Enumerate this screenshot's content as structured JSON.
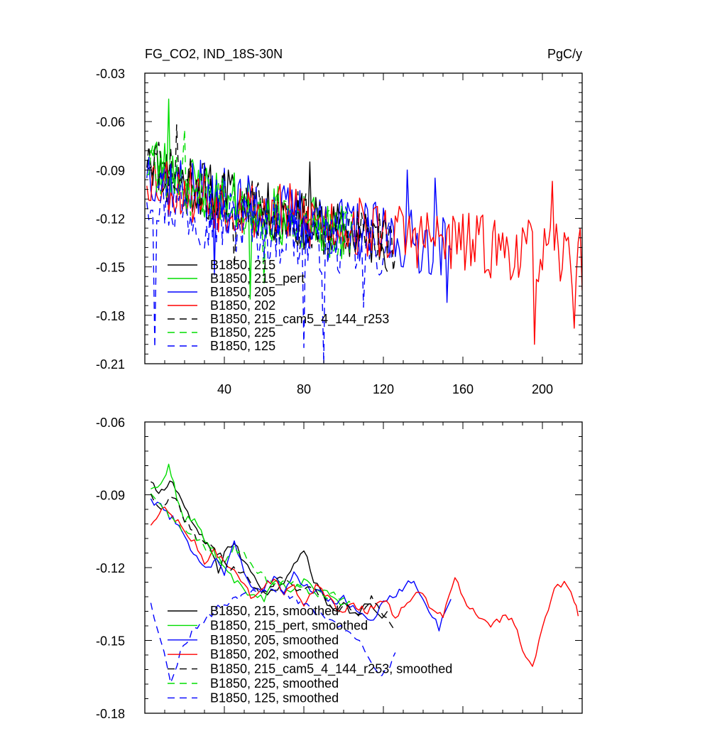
{
  "figure": {
    "left_title": "FG_CO2, IND_18S-30N",
    "right_title": "PgC/y"
  },
  "chart_data": [
    {
      "type": "line",
      "title": "FG_CO2, IND_18S-30N",
      "units": "PgC/y",
      "xlim": [
        0,
        220
      ],
      "ylim": [
        -0.21,
        -0.03
      ],
      "x_ticks": [
        40,
        80,
        120,
        160,
        200
      ],
      "x_tick_labels": [
        "40",
        "80",
        "120",
        "160",
        "200"
      ],
      "y_ticks": [
        -0.03,
        -0.06,
        -0.09,
        -0.12,
        -0.15,
        -0.18,
        -0.21
      ],
      "y_tick_labels": [
        "-0.03",
        "-0.06",
        "-0.09",
        "-0.12",
        "-0.15",
        "-0.18",
        "-0.21"
      ],
      "legend_position": "lower-left",
      "series": [
        {
          "name": "B1850, 215",
          "color": "#000000",
          "dash": "solid",
          "length": 122,
          "base": -0.078,
          "end": -0.135,
          "amplitude": 0.018,
          "seed": 11,
          "events": [
            {
              "x": 83,
              "y": -0.085
            },
            {
              "x": 42,
              "y": -0.09
            }
          ]
        },
        {
          "name": "B1850, 215_pert",
          "color": "#00dd00",
          "dash": "solid",
          "length": 100,
          "base": -0.075,
          "end": -0.13,
          "amplitude": 0.018,
          "seed": 23,
          "events": [
            {
              "x": 12,
              "y": -0.046
            },
            {
              "x": 53,
              "y": -0.17
            }
          ]
        },
        {
          "name": "B1850, 205",
          "color": "#0000ff",
          "dash": "solid",
          "length": 154,
          "base": -0.085,
          "end": -0.138,
          "amplitude": 0.02,
          "seed": 37,
          "events": [
            {
              "x": 35,
              "y": -0.155
            },
            {
              "x": 90,
              "y": -0.13
            },
            {
              "x": 132,
              "y": -0.09
            },
            {
              "x": 146,
              "y": -0.095
            },
            {
              "x": 152,
              "y": -0.172
            }
          ]
        },
        {
          "name": "B1850, 202",
          "color": "#ff0000",
          "dash": "solid",
          "length": 220,
          "base": -0.09,
          "end": -0.145,
          "amplitude": 0.02,
          "seed": 53,
          "events": [
            {
              "x": 196,
              "y": -0.198
            },
            {
              "x": 205,
              "y": -0.097
            },
            {
              "x": 216,
              "y": -0.188
            }
          ]
        },
        {
          "name": "B1850, 215_cam5_4_144_r253",
          "color": "#000000",
          "dash": "dashed",
          "length": 126,
          "base": -0.08,
          "end": -0.135,
          "amplitude": 0.018,
          "seed": 71,
          "events": [
            {
              "x": 16,
              "y": -0.062
            },
            {
              "x": 45,
              "y": -0.15
            }
          ]
        },
        {
          "name": "B1850, 225",
          "color": "#00dd00",
          "dash": "dashed",
          "length": 104,
          "base": -0.085,
          "end": -0.13,
          "amplitude": 0.017,
          "seed": 89,
          "events": [
            {
              "x": 20,
              "y": -0.065
            },
            {
              "x": 60,
              "y": -0.16
            }
          ]
        },
        {
          "name": "B1850, 125",
          "color": "#0000ff",
          "dash": "dashed",
          "length": 124,
          "base": -0.1,
          "end": -0.14,
          "amplitude": 0.022,
          "seed": 97,
          "events": [
            {
              "x": 5,
              "y": -0.2
            },
            {
              "x": 90,
              "y": -0.21
            },
            {
              "x": 80,
              "y": -0.2
            },
            {
              "x": 110,
              "y": -0.175
            }
          ]
        }
      ]
    },
    {
      "type": "line",
      "title": "",
      "xlim": [
        0,
        220
      ],
      "ylim": [
        -0.18,
        -0.06
      ],
      "x_ticks": [
        40,
        80,
        120,
        160,
        200
      ],
      "x_tick_labels": [],
      "y_ticks": [
        -0.06,
        -0.09,
        -0.12,
        -0.15,
        -0.18
      ],
      "y_tick_labels": [
        "-0.06",
        "-0.09",
        "-0.12",
        "-0.15",
        "-0.18"
      ],
      "legend_position": "lower-left",
      "series": [
        {
          "name": "B1850, 215, smoothed",
          "color": "#000000",
          "dash": "solid",
          "knots": [
            [
              3,
              -0.085
            ],
            [
              7,
              -0.09
            ],
            [
              14,
              -0.084
            ],
            [
              20,
              -0.095
            ],
            [
              26,
              -0.105
            ],
            [
              33,
              -0.112
            ],
            [
              37,
              -0.122
            ],
            [
              40,
              -0.113
            ],
            [
              45,
              -0.11
            ],
            [
              50,
              -0.118
            ],
            [
              55,
              -0.123
            ],
            [
              60,
              -0.13
            ],
            [
              65,
              -0.13
            ],
            [
              70,
              -0.125
            ],
            [
              75,
              -0.118
            ],
            [
              80,
              -0.113
            ],
            [
              85,
              -0.125
            ],
            [
              90,
              -0.132
            ],
            [
              95,
              -0.138
            ],
            [
              100,
              -0.135
            ],
            [
              106,
              -0.14
            ],
            [
              112,
              -0.135
            ],
            [
              118,
              -0.14
            ],
            [
              122,
              -0.138
            ]
          ]
        },
        {
          "name": "B1850, 215_pert, smoothed",
          "color": "#00dd00",
          "dash": "solid",
          "knots": [
            [
              3,
              -0.088
            ],
            [
              8,
              -0.085
            ],
            [
              12,
              -0.078
            ],
            [
              16,
              -0.09
            ],
            [
              20,
              -0.1
            ],
            [
              25,
              -0.1
            ],
            [
              30,
              -0.108
            ],
            [
              36,
              -0.115
            ],
            [
              40,
              -0.12
            ],
            [
              45,
              -0.125
            ],
            [
              50,
              -0.13
            ],
            [
              55,
              -0.13
            ],
            [
              60,
              -0.133
            ],
            [
              65,
              -0.125
            ],
            [
              70,
              -0.128
            ],
            [
              75,
              -0.13
            ],
            [
              80,
              -0.125
            ],
            [
              85,
              -0.128
            ],
            [
              90,
              -0.13
            ],
            [
              95,
              -0.133
            ],
            [
              100,
              -0.135
            ]
          ]
        },
        {
          "name": "B1850, 205, smoothed",
          "color": "#0000ff",
          "dash": "solid",
          "knots": [
            [
              3,
              -0.092
            ],
            [
              8,
              -0.095
            ],
            [
              14,
              -0.1
            ],
            [
              20,
              -0.108
            ],
            [
              26,
              -0.115
            ],
            [
              32,
              -0.12
            ],
            [
              36,
              -0.116
            ],
            [
              40,
              -0.122
            ],
            [
              45,
              -0.11
            ],
            [
              50,
              -0.122
            ],
            [
              55,
              -0.13
            ],
            [
              60,
              -0.128
            ],
            [
              65,
              -0.124
            ],
            [
              70,
              -0.13
            ],
            [
              75,
              -0.122
            ],
            [
              80,
              -0.128
            ],
            [
              88,
              -0.13
            ],
            [
              95,
              -0.135
            ],
            [
              100,
              -0.132
            ],
            [
              108,
              -0.14
            ],
            [
              115,
              -0.142
            ],
            [
              120,
              -0.133
            ],
            [
              128,
              -0.13
            ],
            [
              134,
              -0.125
            ],
            [
              138,
              -0.13
            ],
            [
              143,
              -0.138
            ],
            [
              148,
              -0.145
            ],
            [
              154,
              -0.133
            ]
          ]
        },
        {
          "name": "B1850, 202, smoothed",
          "color": "#ff0000",
          "dash": "solid",
          "knots": [
            [
              3,
              -0.103
            ],
            [
              10,
              -0.095
            ],
            [
              15,
              -0.1
            ],
            [
              20,
              -0.105
            ],
            [
              25,
              -0.11
            ],
            [
              30,
              -0.118
            ],
            [
              35,
              -0.113
            ],
            [
              40,
              -0.118
            ],
            [
              45,
              -0.122
            ],
            [
              50,
              -0.128
            ],
            [
              55,
              -0.133
            ],
            [
              60,
              -0.128
            ],
            [
              65,
              -0.124
            ],
            [
              70,
              -0.13
            ],
            [
              75,
              -0.128
            ],
            [
              80,
              -0.135
            ],
            [
              86,
              -0.128
            ],
            [
              92,
              -0.132
            ],
            [
              98,
              -0.138
            ],
            [
              105,
              -0.135
            ],
            [
              112,
              -0.138
            ],
            [
              120,
              -0.133
            ],
            [
              126,
              -0.14
            ],
            [
              132,
              -0.135
            ],
            [
              138,
              -0.13
            ],
            [
              143,
              -0.135
            ],
            [
              150,
              -0.14
            ],
            [
              156,
              -0.125
            ],
            [
              162,
              -0.135
            ],
            [
              168,
              -0.14
            ],
            [
              174,
              -0.145
            ],
            [
              180,
              -0.14
            ],
            [
              186,
              -0.143
            ],
            [
              190,
              -0.155
            ],
            [
              195,
              -0.162
            ],
            [
              200,
              -0.145
            ],
            [
              206,
              -0.13
            ],
            [
              211,
              -0.125
            ],
            [
              216,
              -0.133
            ],
            [
              218,
              -0.14
            ]
          ]
        },
        {
          "name": "B1850, 215_cam5_4_144_r253, smoothed",
          "color": "#000000",
          "dash": "dashed",
          "knots": [
            [
              3,
              -0.09
            ],
            [
              8,
              -0.095
            ],
            [
              14,
              -0.09
            ],
            [
              20,
              -0.1
            ],
            [
              26,
              -0.108
            ],
            [
              32,
              -0.11
            ],
            [
              38,
              -0.115
            ],
            [
              43,
              -0.12
            ],
            [
              48,
              -0.122
            ],
            [
              53,
              -0.125
            ],
            [
              58,
              -0.13
            ],
            [
              63,
              -0.128
            ],
            [
              68,
              -0.123
            ],
            [
              73,
              -0.125
            ],
            [
              78,
              -0.13
            ],
            [
              83,
              -0.128
            ],
            [
              90,
              -0.132
            ],
            [
              96,
              -0.138
            ],
            [
              102,
              -0.135
            ],
            [
              108,
              -0.14
            ],
            [
              114,
              -0.133
            ],
            [
              120,
              -0.14
            ],
            [
              125,
              -0.145
            ]
          ]
        },
        {
          "name": "B1850, 225, smoothed",
          "color": "#00dd00",
          "dash": "dashed",
          "knots": [
            [
              3,
              -0.09
            ],
            [
              8,
              -0.095
            ],
            [
              14,
              -0.1
            ],
            [
              20,
              -0.105
            ],
            [
              26,
              -0.108
            ],
            [
              31,
              -0.113
            ],
            [
              36,
              -0.115
            ],
            [
              40,
              -0.118
            ],
            [
              45,
              -0.112
            ],
            [
              50,
              -0.115
            ],
            [
              55,
              -0.12
            ],
            [
              60,
              -0.124
            ],
            [
              66,
              -0.128
            ],
            [
              72,
              -0.125
            ],
            [
              78,
              -0.128
            ],
            [
              84,
              -0.13
            ],
            [
              90,
              -0.132
            ],
            [
              95,
              -0.13
            ],
            [
              100,
              -0.133
            ],
            [
              104,
              -0.135
            ]
          ]
        },
        {
          "name": "B1850, 125, smoothed",
          "color": "#0000ff",
          "dash": "dashed",
          "knots": [
            [
              3,
              -0.135
            ],
            [
              8,
              -0.15
            ],
            [
              13,
              -0.167
            ],
            [
              18,
              -0.155
            ],
            [
              25,
              -0.145
            ],
            [
              32,
              -0.14
            ],
            [
              40,
              -0.135
            ],
            [
              50,
              -0.132
            ],
            [
              60,
              -0.128
            ],
            [
              70,
              -0.13
            ],
            [
              80,
              -0.135
            ],
            [
              90,
              -0.14
            ],
            [
              100,
              -0.145
            ],
            [
              108,
              -0.15
            ],
            [
              114,
              -0.16
            ],
            [
              118,
              -0.165
            ],
            [
              122,
              -0.162
            ],
            [
              126,
              -0.155
            ]
          ]
        }
      ]
    }
  ]
}
